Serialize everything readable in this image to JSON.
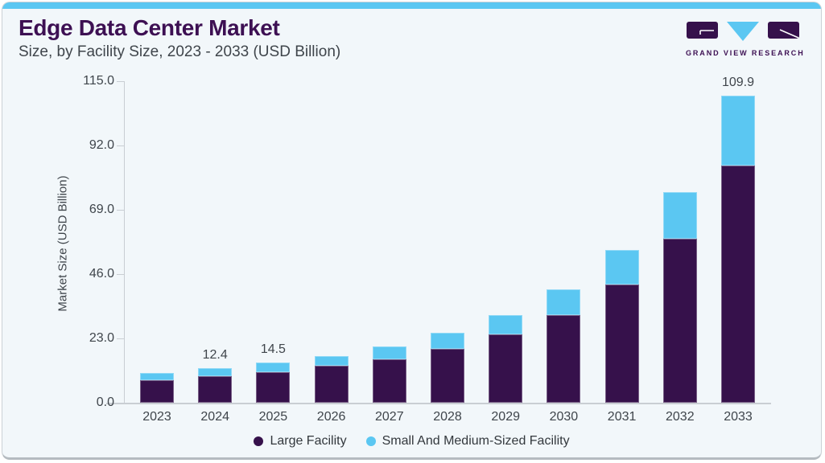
{
  "header": {
    "title": "Edge Data Center Market",
    "subtitle": "Size, by Facility Size, 2023 - 2033 (USD Billion)",
    "brand_name": "GRAND VIEW RESEARCH"
  },
  "colors": {
    "accent_blue": "#5BC7F2",
    "dark_purple": "#36114B",
    "title_purple": "#3D1053",
    "background": "#F2F7FA",
    "axis_gray": "#C9CED3",
    "text_gray": "#3F454B"
  },
  "chart_data": {
    "type": "bar",
    "stacked": true,
    "title": "Edge Data Center Market Size, by Facility Size, 2023 - 2033 (USD Billion)",
    "ylabel": "Market Size (USD Billion)",
    "xlabel": "",
    "ylim": [
      0,
      115
    ],
    "y_ticks": [
      "115.0",
      "92.0",
      "69.0",
      "46.0",
      "23.0",
      "0.0"
    ],
    "grid": false,
    "legend_position": "bottom",
    "categories": [
      "2023",
      "2024",
      "2025",
      "2026",
      "2027",
      "2028",
      "2029",
      "2030",
      "2031",
      "2032",
      "2033"
    ],
    "series": [
      {
        "name": "Large Facility",
        "color": "#36114B",
        "values": [
          8.0,
          9.6,
          11.0,
          13.1,
          15.6,
          19.4,
          24.4,
          31.4,
          42.4,
          58.6,
          84.9
        ]
      },
      {
        "name": "Small And Medium-Sized Facility",
        "color": "#5BC7F2",
        "values": [
          2.6,
          2.8,
          3.5,
          3.7,
          4.6,
          5.7,
          7.0,
          9.2,
          12.1,
          16.8,
          25.0
        ]
      }
    ],
    "totals": [
      10.6,
      12.4,
      14.5,
      16.8,
      20.2,
      25.1,
      31.4,
      40.6,
      54.5,
      75.4,
      109.9
    ],
    "bar_labels": [
      "",
      "12.4",
      "14.5",
      "",
      "",
      "",
      "",
      "",
      "",
      "",
      "109.9"
    ]
  }
}
